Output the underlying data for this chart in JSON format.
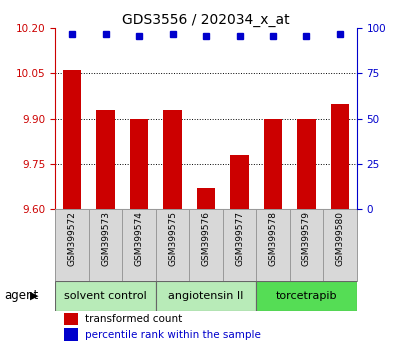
{
  "title": "GDS3556 / 202034_x_at",
  "samples": [
    "GSM399572",
    "GSM399573",
    "GSM399574",
    "GSM399575",
    "GSM399576",
    "GSM399577",
    "GSM399578",
    "GSM399579",
    "GSM399580"
  ],
  "bar_values": [
    10.06,
    9.93,
    9.9,
    9.93,
    9.67,
    9.78,
    9.9,
    9.9,
    9.95
  ],
  "percentile_values": [
    97,
    97,
    96,
    97,
    96,
    96,
    96,
    96,
    97
  ],
  "ylim_left": [
    9.6,
    10.2
  ],
  "ylim_right": [
    0,
    100
  ],
  "yticks_left": [
    9.6,
    9.75,
    9.9,
    10.05,
    10.2
  ],
  "yticks_right": [
    0,
    25,
    50,
    75,
    100
  ],
  "bar_color": "#cc0000",
  "dot_color": "#0000cc",
  "agent_groups": [
    {
      "label": "solvent control",
      "start": 0,
      "end": 3,
      "color": "#b8ebb8"
    },
    {
      "label": "angiotensin II",
      "start": 3,
      "end": 6,
      "color": "#b8ebb8"
    },
    {
      "label": "torcetrapib",
      "start": 6,
      "end": 9,
      "color": "#55dd55"
    }
  ],
  "legend_bar_label": "transformed count",
  "legend_dot_label": "percentile rank within the sample",
  "agent_label": "agent",
  "background_color": "#ffffff",
  "tick_label_color_left": "#cc0000",
  "tick_label_color_right": "#0000cc",
  "bar_width": 0.55,
  "sample_box_color": "#d8d8d8",
  "sample_box_edge": "#999999",
  "grid_yticks": [
    9.75,
    9.9,
    10.05
  ]
}
